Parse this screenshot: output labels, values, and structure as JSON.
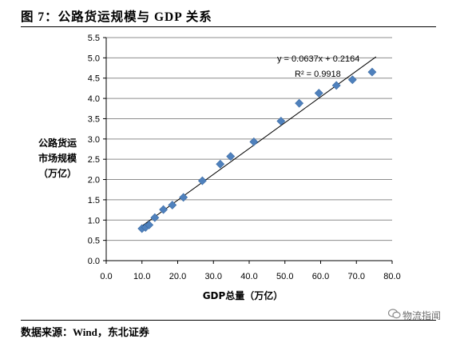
{
  "figure": {
    "title": "图 7：公路货运规模与 GDP 关系",
    "source": "数据来源：Wind，东北证券",
    "watermark": "物流指闻",
    "watermark_icon": "wechat-icon"
  },
  "chart_data": {
    "type": "scatter",
    "xlabel": "GDP总量（万亿）",
    "ylabel_lines": [
      "公路货运",
      "市场规模",
      "（万亿）"
    ],
    "xlim": [
      0,
      80
    ],
    "ylim": [
      0,
      5.5
    ],
    "x_ticks": [
      "0.0",
      "10.0",
      "20.0",
      "30.0",
      "40.0",
      "50.0",
      "60.0",
      "70.0",
      "80.0"
    ],
    "y_ticks": [
      "0.0",
      "0.5",
      "1.0",
      "1.5",
      "2.0",
      "2.5",
      "3.0",
      "3.5",
      "4.0",
      "4.5",
      "5.0",
      "5.5"
    ],
    "grid": "horizontal",
    "marker": "diamond",
    "marker_color": "#4F81BD",
    "series": [
      {
        "x": [
          10.0,
          11.0,
          12.0,
          13.6,
          16.0,
          18.5,
          21.6,
          26.9,
          31.9,
          34.8,
          41.3,
          48.9,
          54.0,
          59.5,
          64.4,
          68.9,
          74.4
        ],
        "y": [
          0.79,
          0.82,
          0.88,
          1.06,
          1.26,
          1.37,
          1.56,
          1.97,
          2.38,
          2.57,
          2.93,
          3.44,
          3.88,
          4.13,
          4.32,
          4.46,
          4.65
        ]
      }
    ],
    "trendline": {
      "slope": 0.0637,
      "intercept": 0.2164,
      "x_range": [
        9.5,
        75.5
      ],
      "equation": "y = 0.0637x + 0.2164",
      "r_squared": "R² = 0.9918"
    }
  }
}
